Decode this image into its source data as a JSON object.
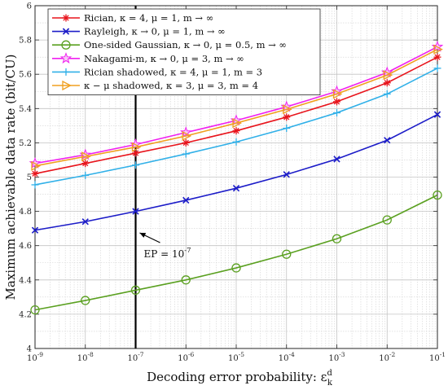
{
  "chart_data": {
    "type": "line",
    "xlabel": "Decoding error probability: ε",
    "xlabel_sub": "k",
    "xlabel_sup": "d",
    "ylabel": "Maximum achievable data rate (bit/CU)",
    "x_scale": "log",
    "x": [
      1e-09,
      1e-08,
      1e-07,
      1e-06,
      1e-05,
      0.0001,
      0.001,
      0.01,
      0.1
    ],
    "x_tick_labels": [
      {
        "base": "10",
        "exp": "-9"
      },
      {
        "base": "10",
        "exp": "-8"
      },
      {
        "base": "10",
        "exp": "-7"
      },
      {
        "base": "10",
        "exp": "-6"
      },
      {
        "base": "10",
        "exp": "-5"
      },
      {
        "base": "10",
        "exp": "-4"
      },
      {
        "base": "10",
        "exp": "-3"
      },
      {
        "base": "10",
        "exp": "-2"
      },
      {
        "base": "10",
        "exp": "-1"
      }
    ],
    "ylim": [
      4,
      6
    ],
    "y_ticks": [
      4,
      4.2,
      4.4,
      4.6,
      4.8,
      5,
      5.2,
      5.4,
      5.6,
      5.8,
      6
    ],
    "y_tick_labels": [
      "4",
      "4.2",
      "4.4",
      "4.6",
      "4.8",
      "5",
      "5.2",
      "5.4",
      "5.6",
      "5.8",
      "6"
    ],
    "grid": true,
    "legend_position": "top-left",
    "series": [
      {
        "name": "Rician, κ = 4, μ = 1, m → ∞",
        "color": "#e8141c",
        "marker": "asterisk",
        "values": [
          5.02,
          5.08,
          5.14,
          5.2,
          5.27,
          5.35,
          5.44,
          5.55,
          5.7
        ]
      },
      {
        "name": "Rayleigh, κ → 0, μ = 1, m → ∞",
        "color": "#1c1cc8",
        "marker": "x",
        "values": [
          4.69,
          4.74,
          4.8,
          4.865,
          4.935,
          5.015,
          5.105,
          5.215,
          5.365
        ]
      },
      {
        "name": "One-sided Gaussian, κ → 0, μ = 0.5, m → ∞",
        "color": "#5aa020",
        "marker": "circle",
        "values": [
          4.225,
          4.28,
          4.34,
          4.4,
          4.47,
          4.55,
          4.64,
          4.75,
          4.895
        ]
      },
      {
        "name": "Nakagami-m, κ → 0, μ = 3, m → ∞",
        "color": "#f020f0",
        "marker": "star",
        "values": [
          5.08,
          5.13,
          5.19,
          5.26,
          5.33,
          5.41,
          5.5,
          5.61,
          5.76
        ]
      },
      {
        "name": "Rician shadowed, κ = 4, μ = 1, m = 3",
        "color": "#30b0e8",
        "marker": "plus",
        "values": [
          4.955,
          5.01,
          5.07,
          5.135,
          5.205,
          5.285,
          5.375,
          5.485,
          5.635
        ]
      },
      {
        "name": "κ − μ shadowed, κ = 3, μ = 3, m = 4",
        "color": "#f0a020",
        "marker": "triangle-right",
        "values": [
          5.065,
          5.12,
          5.175,
          5.24,
          5.315,
          5.395,
          5.485,
          5.595,
          5.745
        ]
      }
    ],
    "annotation": {
      "text": "EP = 10",
      "exp": "-7",
      "at_x": 1e-07
    }
  }
}
